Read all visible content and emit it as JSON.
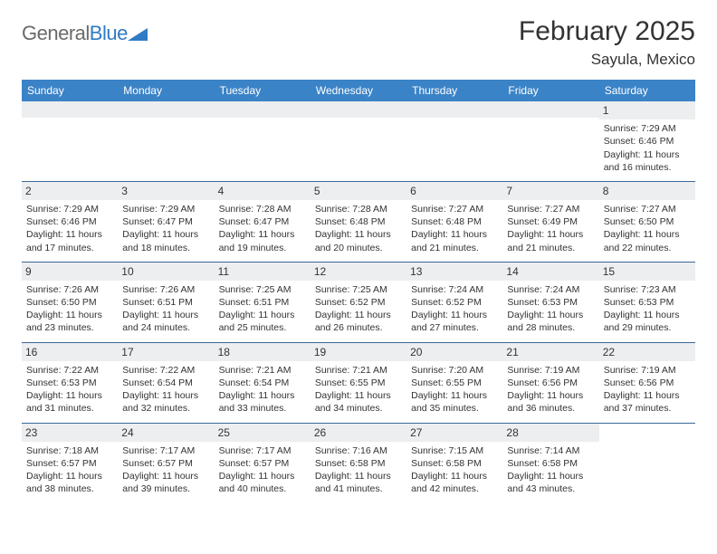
{
  "logo": {
    "text_gray": "General",
    "text_blue": "Blue"
  },
  "title": "February 2025",
  "location": "Sayula, Mexico",
  "colors": {
    "header_bg": "#3b83c7",
    "header_text": "#ffffff",
    "row_divider": "#3b6a9a",
    "daynum_bg": "#eceeef",
    "text": "#333333",
    "logo_gray": "#6a6a6a",
    "logo_blue": "#2f7bc4"
  },
  "day_headers": [
    "Sunday",
    "Monday",
    "Tuesday",
    "Wednesday",
    "Thursday",
    "Friday",
    "Saturday"
  ],
  "weeks": [
    [
      null,
      null,
      null,
      null,
      null,
      null,
      {
        "n": "1",
        "sr": "Sunrise: 7:29 AM",
        "ss": "Sunset: 6:46 PM",
        "dl": "Daylight: 11 hours and 16 minutes."
      }
    ],
    [
      {
        "n": "2",
        "sr": "Sunrise: 7:29 AM",
        "ss": "Sunset: 6:46 PM",
        "dl": "Daylight: 11 hours and 17 minutes."
      },
      {
        "n": "3",
        "sr": "Sunrise: 7:29 AM",
        "ss": "Sunset: 6:47 PM",
        "dl": "Daylight: 11 hours and 18 minutes."
      },
      {
        "n": "4",
        "sr": "Sunrise: 7:28 AM",
        "ss": "Sunset: 6:47 PM",
        "dl": "Daylight: 11 hours and 19 minutes."
      },
      {
        "n": "5",
        "sr": "Sunrise: 7:28 AM",
        "ss": "Sunset: 6:48 PM",
        "dl": "Daylight: 11 hours and 20 minutes."
      },
      {
        "n": "6",
        "sr": "Sunrise: 7:27 AM",
        "ss": "Sunset: 6:48 PM",
        "dl": "Daylight: 11 hours and 21 minutes."
      },
      {
        "n": "7",
        "sr": "Sunrise: 7:27 AM",
        "ss": "Sunset: 6:49 PM",
        "dl": "Daylight: 11 hours and 21 minutes."
      },
      {
        "n": "8",
        "sr": "Sunrise: 7:27 AM",
        "ss": "Sunset: 6:50 PM",
        "dl": "Daylight: 11 hours and 22 minutes."
      }
    ],
    [
      {
        "n": "9",
        "sr": "Sunrise: 7:26 AM",
        "ss": "Sunset: 6:50 PM",
        "dl": "Daylight: 11 hours and 23 minutes."
      },
      {
        "n": "10",
        "sr": "Sunrise: 7:26 AM",
        "ss": "Sunset: 6:51 PM",
        "dl": "Daylight: 11 hours and 24 minutes."
      },
      {
        "n": "11",
        "sr": "Sunrise: 7:25 AM",
        "ss": "Sunset: 6:51 PM",
        "dl": "Daylight: 11 hours and 25 minutes."
      },
      {
        "n": "12",
        "sr": "Sunrise: 7:25 AM",
        "ss": "Sunset: 6:52 PM",
        "dl": "Daylight: 11 hours and 26 minutes."
      },
      {
        "n": "13",
        "sr": "Sunrise: 7:24 AM",
        "ss": "Sunset: 6:52 PM",
        "dl": "Daylight: 11 hours and 27 minutes."
      },
      {
        "n": "14",
        "sr": "Sunrise: 7:24 AM",
        "ss": "Sunset: 6:53 PM",
        "dl": "Daylight: 11 hours and 28 minutes."
      },
      {
        "n": "15",
        "sr": "Sunrise: 7:23 AM",
        "ss": "Sunset: 6:53 PM",
        "dl": "Daylight: 11 hours and 29 minutes."
      }
    ],
    [
      {
        "n": "16",
        "sr": "Sunrise: 7:22 AM",
        "ss": "Sunset: 6:53 PM",
        "dl": "Daylight: 11 hours and 31 minutes."
      },
      {
        "n": "17",
        "sr": "Sunrise: 7:22 AM",
        "ss": "Sunset: 6:54 PM",
        "dl": "Daylight: 11 hours and 32 minutes."
      },
      {
        "n": "18",
        "sr": "Sunrise: 7:21 AM",
        "ss": "Sunset: 6:54 PM",
        "dl": "Daylight: 11 hours and 33 minutes."
      },
      {
        "n": "19",
        "sr": "Sunrise: 7:21 AM",
        "ss": "Sunset: 6:55 PM",
        "dl": "Daylight: 11 hours and 34 minutes."
      },
      {
        "n": "20",
        "sr": "Sunrise: 7:20 AM",
        "ss": "Sunset: 6:55 PM",
        "dl": "Daylight: 11 hours and 35 minutes."
      },
      {
        "n": "21",
        "sr": "Sunrise: 7:19 AM",
        "ss": "Sunset: 6:56 PM",
        "dl": "Daylight: 11 hours and 36 minutes."
      },
      {
        "n": "22",
        "sr": "Sunrise: 7:19 AM",
        "ss": "Sunset: 6:56 PM",
        "dl": "Daylight: 11 hours and 37 minutes."
      }
    ],
    [
      {
        "n": "23",
        "sr": "Sunrise: 7:18 AM",
        "ss": "Sunset: 6:57 PM",
        "dl": "Daylight: 11 hours and 38 minutes."
      },
      {
        "n": "24",
        "sr": "Sunrise: 7:17 AM",
        "ss": "Sunset: 6:57 PM",
        "dl": "Daylight: 11 hours and 39 minutes."
      },
      {
        "n": "25",
        "sr": "Sunrise: 7:17 AM",
        "ss": "Sunset: 6:57 PM",
        "dl": "Daylight: 11 hours and 40 minutes."
      },
      {
        "n": "26",
        "sr": "Sunrise: 7:16 AM",
        "ss": "Sunset: 6:58 PM",
        "dl": "Daylight: 11 hours and 41 minutes."
      },
      {
        "n": "27",
        "sr": "Sunrise: 7:15 AM",
        "ss": "Sunset: 6:58 PM",
        "dl": "Daylight: 11 hours and 42 minutes."
      },
      {
        "n": "28",
        "sr": "Sunrise: 7:14 AM",
        "ss": "Sunset: 6:58 PM",
        "dl": "Daylight: 11 hours and 43 minutes."
      },
      null
    ]
  ]
}
